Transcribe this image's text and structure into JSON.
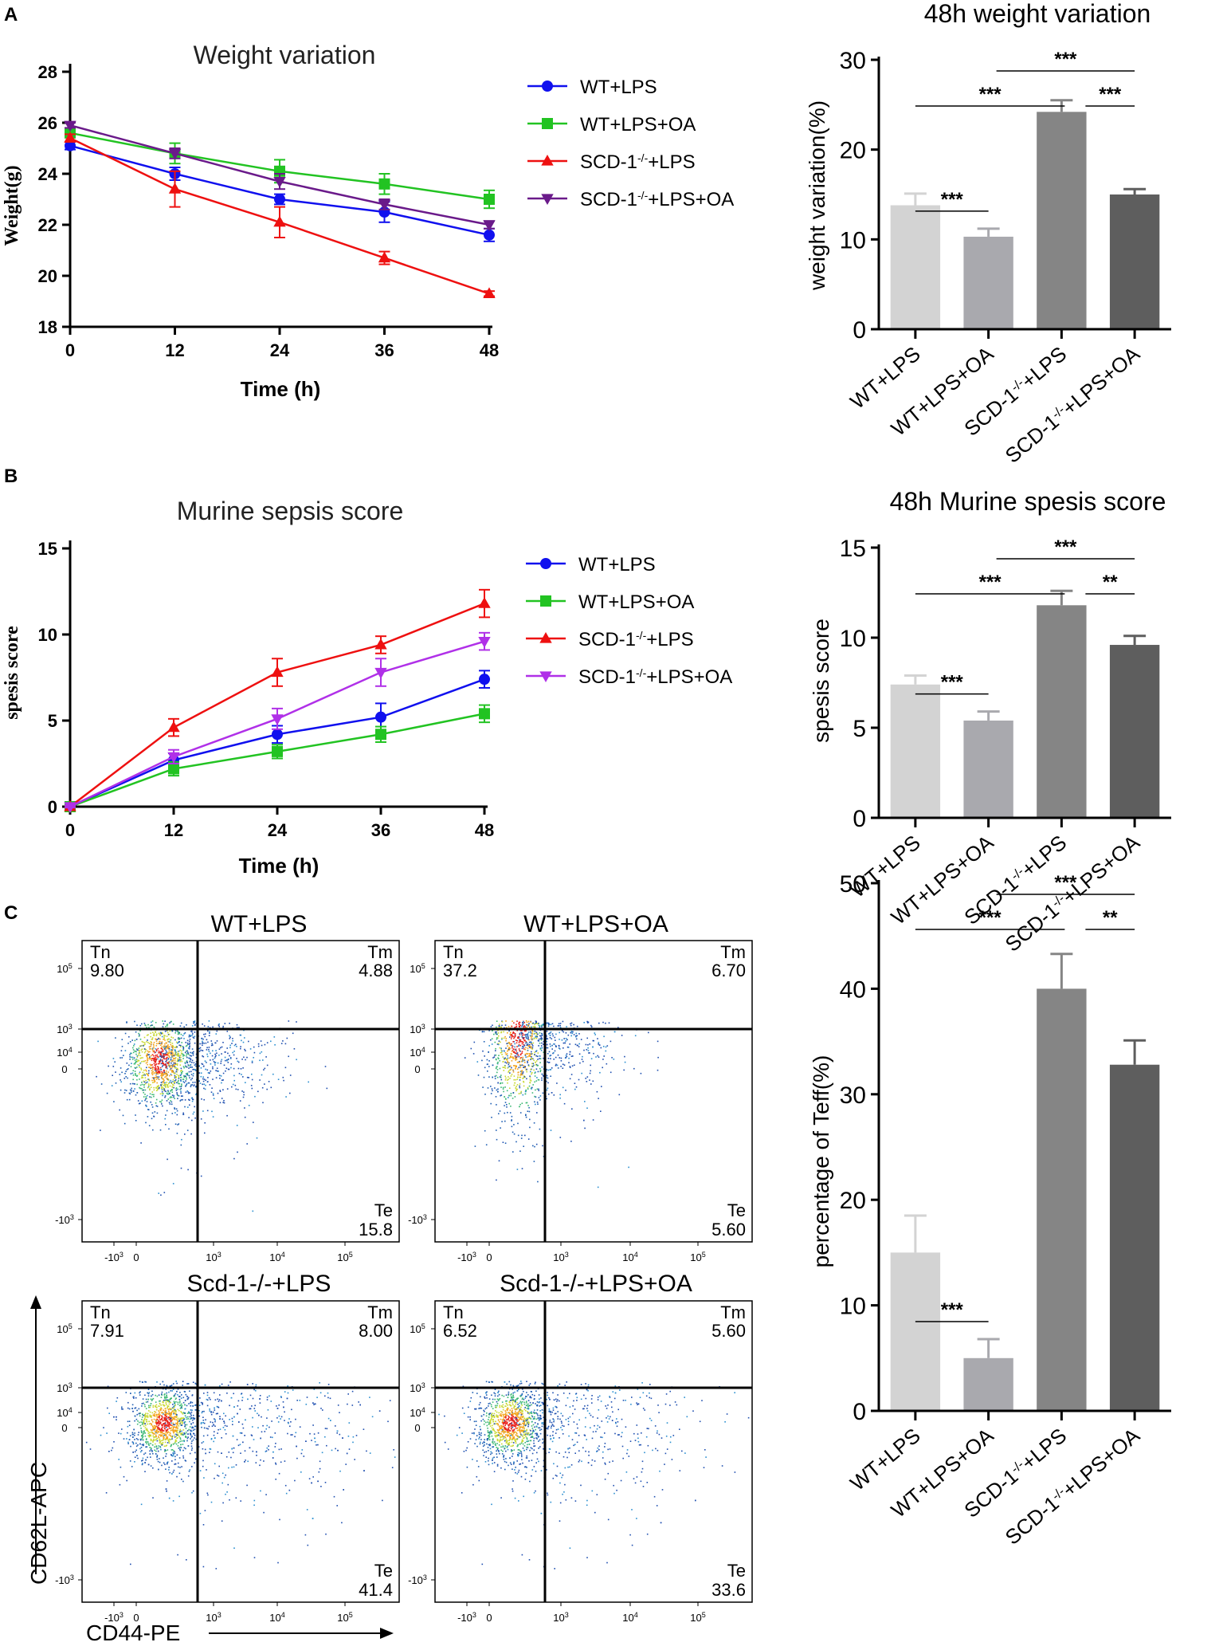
{
  "panel_labels": {
    "a": "A",
    "b": "B",
    "c": "C"
  },
  "flow_axes": {
    "x_label": "CD44-PE",
    "y_label": "CD62L-APC",
    "x_ticks": [
      "-10^3",
      "0",
      "10^3",
      "10^4",
      "10^5"
    ],
    "y_ticks": [
      "10^5",
      "10^4",
      "10^3",
      "0",
      "-10^3"
    ],
    "quadrant_names": {
      "tn": "Tn",
      "tm": "Tm",
      "te": "Te"
    }
  },
  "flow_plots": [
    {
      "title": "WT+LPS",
      "tn": "9.80",
      "tm": "4.88",
      "te": "15.8"
    },
    {
      "title": "WT+LPS+OA",
      "tn": "37.2",
      "tm": "6.70",
      "te": "5.60"
    },
    {
      "title": "Scd-1-/-+LPS",
      "tn": "7.91",
      "tm": "8.00",
      "te": "41.4"
    },
    {
      "title": "Scd-1-/-+LPS+OA",
      "tn": "6.52",
      "tm": "5.60",
      "te": "33.6"
    }
  ],
  "chart_data": [
    {
      "type": "line",
      "title": "Weight variation",
      "xlabel": "Time (h)",
      "ylabel": "Weight(g)",
      "x": [
        0,
        12,
        24,
        36,
        48
      ],
      "xlim": [
        0,
        48
      ],
      "ylim": [
        18,
        28
      ],
      "yticks": [
        18,
        20,
        22,
        24,
        26,
        28
      ],
      "legend_position": "right",
      "series": [
        {
          "name": "WT+LPS",
          "color": "#1010ee",
          "marker": "circle",
          "values": [
            25.1,
            24.0,
            23.0,
            22.5,
            21.6
          ],
          "errors": [
            0.15,
            0.25,
            0.2,
            0.4,
            0.25
          ]
        },
        {
          "name": "WT+LPS+OA",
          "color": "#22c322",
          "marker": "square",
          "values": [
            25.6,
            24.8,
            24.1,
            23.6,
            23.0
          ],
          "errors": [
            0.15,
            0.4,
            0.45,
            0.4,
            0.35
          ]
        },
        {
          "name": "SCD-1-/-+LPS",
          "color": "#ee1010",
          "marker": "triangle",
          "values": [
            25.4,
            23.4,
            22.1,
            20.7,
            19.3
          ],
          "errors": [
            0.15,
            0.7,
            0.6,
            0.25,
            0.1
          ]
        },
        {
          "name": "SCD-1-/-+LPS+OA",
          "color": "#6a1a8a",
          "marker": "triangle-down",
          "values": [
            25.9,
            24.8,
            23.7,
            22.8,
            22.0
          ],
          "errors": [
            0.1,
            0.2,
            0.3,
            0.2,
            0.15
          ]
        }
      ]
    },
    {
      "type": "bar",
      "title": "48h weight variation",
      "ylabel": "weight variation(%)",
      "categories": [
        "WT+LPS",
        "WT+LPS+OA",
        "SCD-1-/-+LPS",
        "SCD-1-/-+LPS+OA"
      ],
      "values": [
        13.8,
        10.3,
        24.2,
        15.0
      ],
      "errors": [
        1.3,
        0.9,
        1.3,
        0.6
      ],
      "colors": [
        "#d3d3d3",
        "#a9a9ae",
        "#858585",
        "#5e5e5e"
      ],
      "ylim": [
        0,
        30
      ],
      "yticks": [
        0,
        10,
        20,
        30
      ],
      "significance": [
        {
          "from": 0,
          "to": 1,
          "label": "***"
        },
        {
          "from": 0,
          "to": 2,
          "label": "***"
        },
        {
          "from": 1,
          "to": 3,
          "label": "***"
        },
        {
          "from": 2,
          "to": 3,
          "label": "***"
        }
      ]
    },
    {
      "type": "line",
      "title": "Murine sepsis score",
      "xlabel": "Time (h)",
      "ylabel": "spesis score",
      "x": [
        0,
        12,
        24,
        36,
        48
      ],
      "xlim": [
        0,
        48
      ],
      "ylim": [
        0,
        15
      ],
      "yticks": [
        0,
        5,
        10,
        15
      ],
      "legend_position": "right",
      "series": [
        {
          "name": "WT+LPS",
          "color": "#1010ee",
          "marker": "circle",
          "values": [
            0,
            2.7,
            4.2,
            5.2,
            7.4
          ],
          "errors": [
            0.05,
            0.4,
            0.5,
            0.8,
            0.5
          ]
        },
        {
          "name": "WT+LPS+OA",
          "color": "#22c322",
          "marker": "square",
          "values": [
            0,
            2.2,
            3.2,
            4.2,
            5.4
          ],
          "errors": [
            0.05,
            0.4,
            0.4,
            0.45,
            0.5
          ]
        },
        {
          "name": "SCD-1-/-+LPS",
          "color": "#ee1010",
          "marker": "triangle",
          "values": [
            0,
            4.6,
            7.8,
            9.4,
            11.8
          ],
          "errors": [
            0.05,
            0.5,
            0.8,
            0.5,
            0.8
          ]
        },
        {
          "name": "SCD-1-/-+LPS+OA",
          "color": "#b030e8",
          "marker": "triangle-down",
          "values": [
            0,
            2.9,
            5.1,
            7.8,
            9.6
          ],
          "errors": [
            0.05,
            0.4,
            0.6,
            0.8,
            0.5
          ]
        }
      ]
    },
    {
      "type": "bar",
      "title": "48h Murine spesis score",
      "ylabel": "spesis score",
      "categories": [
        "WT+LPS",
        "WT+LPS+OA",
        "SCD-1-/-+LPS",
        "SCD-1-/-+LPS+OA"
      ],
      "values": [
        7.4,
        5.4,
        11.8,
        9.6
      ],
      "errors": [
        0.5,
        0.5,
        0.8,
        0.5
      ],
      "colors": [
        "#d3d3d3",
        "#a9a9ae",
        "#858585",
        "#5e5e5e"
      ],
      "ylim": [
        0,
        15
      ],
      "yticks": [
        0,
        5,
        10,
        15
      ],
      "significance": [
        {
          "from": 0,
          "to": 1,
          "label": "***"
        },
        {
          "from": 0,
          "to": 2,
          "label": "***"
        },
        {
          "from": 1,
          "to": 3,
          "label": "***"
        },
        {
          "from": 2,
          "to": 3,
          "label": "**"
        }
      ]
    },
    {
      "type": "bar",
      "title": "",
      "ylabel": "percentage of Teff(%)",
      "categories": [
        "WT+LPS",
        "WT+LPS+OA",
        "SCD-1-/-+LPS",
        "SCD-1-/-+LPS+OA"
      ],
      "values": [
        15.0,
        5.0,
        40.0,
        32.8
      ],
      "errors": [
        3.5,
        1.8,
        3.3,
        2.3
      ],
      "colors": [
        "#d3d3d3",
        "#a9a9ae",
        "#858585",
        "#5e5e5e"
      ],
      "ylim": [
        0,
        50
      ],
      "yticks": [
        0,
        10,
        20,
        30,
        40,
        50
      ],
      "significance": [
        {
          "from": 0,
          "to": 1,
          "label": "***"
        },
        {
          "from": 0,
          "to": 2,
          "label": "***"
        },
        {
          "from": 1,
          "to": 3,
          "label": "***"
        },
        {
          "from": 2,
          "to": 3,
          "label": "**"
        }
      ]
    }
  ]
}
